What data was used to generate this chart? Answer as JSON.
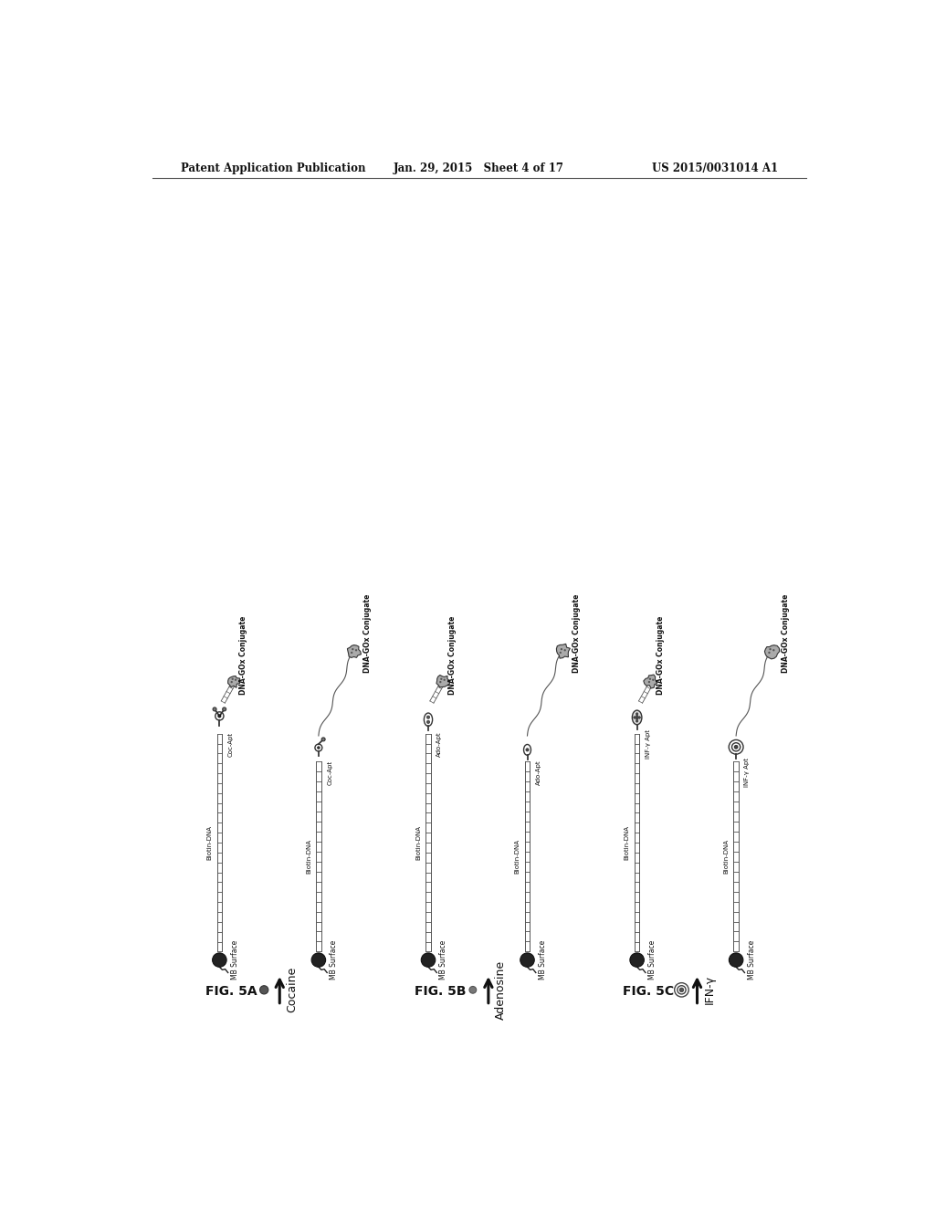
{
  "header_left": "Patent Application Publication",
  "header_center": "Jan. 29, 2015   Sheet 4 of 17",
  "header_right": "US 2015/0031014 A1",
  "fig_labels": [
    "FIG. 5A",
    "FIG. 5B",
    "FIG. 5C"
  ],
  "analyte_labels": [
    "Cocaine",
    "Adenosine",
    "IFN-γ"
  ],
  "apt_labels": [
    "Coc-Apt",
    "Ado-Apt",
    "INF-γ Apt"
  ],
  "bg_color": "#ffffff",
  "text_color": "#111111",
  "strand_color": "#444444",
  "bead_color": "#333333",
  "gox_color": "#999999",
  "label_color": "#222222"
}
